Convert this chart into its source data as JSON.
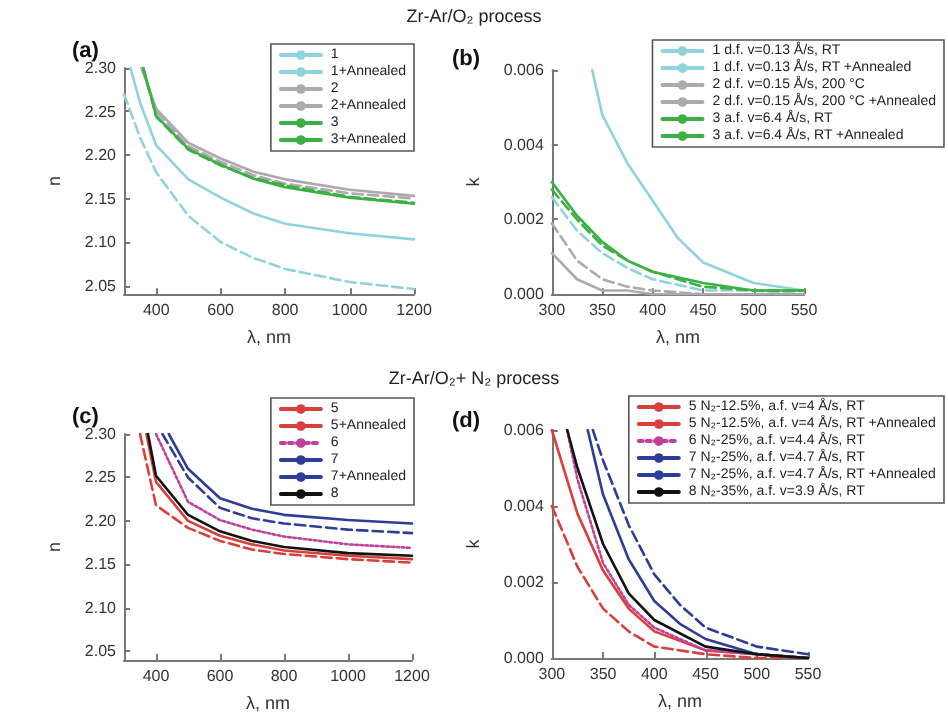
{
  "chart_data": [
    {
      "type": "line",
      "title": "Zr-Ar/O₂ process",
      "annotations": [
        "(a)"
      ],
      "xlabel": "λ, nm",
      "ylabel": "n",
      "xlim": [
        300,
        1200
      ],
      "xticks": [
        400,
        600,
        800,
        1000,
        1200
      ],
      "ylim": [
        2.04,
        2.3
      ],
      "yticks": [
        2.05,
        {
          "value": 2.1,
          "label": "2.10"
        },
        2.15,
        {
          "value": 2.2,
          "label": "2.20"
        },
        2.25,
        {
          "value": 2.3,
          "label": "2.30"
        }
      ],
      "grid": false,
      "legend": "top right",
      "marker": "none",
      "series": [
        {
          "name": "1",
          "color": "#8fd3dc",
          "line_style": "solid",
          "x": [
            320,
            350,
            400,
            500,
            600,
            700,
            800,
            1000,
            1200
          ],
          "values": [
            2.3,
            2.26,
            2.211,
            2.172,
            2.151,
            2.133,
            2.121,
            2.11,
            2.103
          ]
        },
        {
          "name": "1+Annealed",
          "color": "#8fd3dc",
          "line_style": "dashed",
          "x": [
            300,
            350,
            400,
            500,
            600,
            700,
            800,
            1000,
            1200
          ],
          "values": [
            2.27,
            2.22,
            2.18,
            2.13,
            2.1,
            2.082,
            2.069,
            2.054,
            2.046
          ]
        },
        {
          "name": "2",
          "color": "#b0a8b0",
          "line_style": "solid",
          "x": [
            355,
            400,
            500,
            600,
            700,
            800,
            1000,
            1200
          ],
          "values": [
            2.3,
            2.253,
            2.214,
            2.196,
            2.181,
            2.172,
            2.16,
            2.153
          ]
        },
        {
          "name": "2+Annealed",
          "color": "#b0a8b0",
          "line_style": "dashed",
          "x": [
            355,
            400,
            500,
            600,
            700,
            800,
            1000,
            1200
          ],
          "values": [
            2.3,
            2.25,
            2.21,
            2.192,
            2.177,
            2.167,
            2.156,
            2.15
          ]
        },
        {
          "name": "3",
          "color": "#3cb043",
          "line_style": "solid",
          "x": [
            360,
            400,
            500,
            600,
            700,
            800,
            1000,
            1200
          ],
          "values": [
            2.3,
            2.245,
            2.207,
            2.189,
            2.173,
            2.163,
            2.151,
            2.144
          ]
        },
        {
          "name": "3+Annealed",
          "color": "#3cb043",
          "line_style": "dashed",
          "x": [
            360,
            400,
            500,
            600,
            700,
            800,
            1000,
            1200
          ],
          "values": [
            2.3,
            2.244,
            2.206,
            2.188,
            2.174,
            2.165,
            2.152,
            2.145
          ]
        }
      ]
    },
    {
      "type": "line",
      "annotations": [
        "(b)"
      ],
      "xlabel": "λ, nm",
      "ylabel": "k",
      "xlim": [
        300,
        550
      ],
      "xticks": [
        300,
        350,
        400,
        450,
        500,
        550
      ],
      "ylim": [
        0,
        0.006
      ],
      "yticks": [
        {
          "value": 0,
          "label": "0.000"
        },
        0.002,
        0.004,
        0.006
      ],
      "grid": false,
      "legend": "top right",
      "marker": "none",
      "series": [
        {
          "name": "1 d.f. v=0.13 Å/s, RT",
          "color": "#8fd3dc",
          "line_style": "solid",
          "x": [
            340,
            350,
            375,
            400,
            425,
            450,
            500,
            550
          ],
          "values": [
            0.006,
            0.0048,
            0.0035,
            0.0025,
            0.0015,
            0.00085,
            0.0003,
            0.0001
          ]
        },
        {
          "name": "1 d.f. v=0.13 Å/s, RT +Annealed",
          "color": "#8fd3dc",
          "line_style": "dashed",
          "x": [
            300,
            325,
            350,
            375,
            400,
            450,
            500,
            550
          ],
          "values": [
            0.0026,
            0.0017,
            0.0011,
            0.0007,
            0.0004,
            0.0001,
            0.0001,
            0
          ]
        },
        {
          "name": "2 d.f. v=0.15 Å/s, 200 °C",
          "color": "#b0a8b0",
          "line_style": "solid",
          "x": [
            300,
            325,
            350,
            375,
            400,
            450,
            550
          ],
          "values": [
            0.0011,
            0.0004,
            0.0001,
            0.0001,
            0,
            0,
            0
          ]
        },
        {
          "name": "2 d.f. v=0.15 Å/s, 200 °C +Annealed",
          "color": "#b0a8b0",
          "line_style": "dashed",
          "x": [
            300,
            325,
            350,
            375,
            400,
            450,
            550
          ],
          "values": [
            0.0019,
            0.0009,
            0.0004,
            0.0002,
            0.0001,
            0,
            0
          ]
        },
        {
          "name": "3 a.f. v=6.4 Å/s, RT",
          "color": "#3cb043",
          "line_style": "solid",
          "x": [
            300,
            325,
            350,
            375,
            400,
            450,
            500,
            550
          ],
          "values": [
            0.003,
            0.0021,
            0.0014,
            0.0009,
            0.0006,
            0.0003,
            0.0001,
            0.0001
          ]
        },
        {
          "name": "3 a.f. v=6.4 Å/s, RT +Annealed",
          "color": "#3cb043",
          "line_style": "dashed",
          "x": [
            300,
            325,
            350,
            375,
            400,
            450,
            500,
            550
          ],
          "values": [
            0.0028,
            0.002,
            0.0013,
            0.0009,
            0.0006,
            0.0002,
            0.0001,
            0.0001
          ]
        }
      ]
    },
    {
      "type": "line",
      "title": "Zr-Ar/O₂+ N₂ process",
      "annotations": [
        "(c)"
      ],
      "xlabel": "λ, nm",
      "ylabel": "n",
      "xlim": [
        300,
        1200
      ],
      "xticks": [
        400,
        600,
        800,
        1000,
        1200
      ],
      "ylim": [
        2.04,
        2.3
      ],
      "yticks": [
        2.05,
        {
          "value": 2.1,
          "label": "2.10"
        },
        2.15,
        {
          "value": 2.2,
          "label": "2.20"
        },
        2.25,
        {
          "value": 2.3,
          "label": "2.30"
        }
      ],
      "grid": false,
      "legend": "top right",
      "marker": "none",
      "series": [
        {
          "name": "5",
          "color": "#d9403a",
          "line_style": "solid",
          "x": [
            370,
            400,
            500,
            600,
            700,
            800,
            1000,
            1200
          ],
          "values": [
            2.3,
            2.245,
            2.2,
            2.183,
            2.173,
            2.166,
            2.16,
            2.156
          ]
        },
        {
          "name": "5+Annealed",
          "color": "#d9403a",
          "line_style": "dashed",
          "x": [
            350,
            400,
            500,
            600,
            700,
            800,
            1000,
            1200
          ],
          "values": [
            2.3,
            2.218,
            2.192,
            2.177,
            2.167,
            2.162,
            2.156,
            2.152
          ]
        },
        {
          "name": "6",
          "color": "#c0409a",
          "line_style": "dotted",
          "x": [
            400,
            500,
            600,
            700,
            800,
            1000,
            1200
          ],
          "values": [
            2.3,
            2.222,
            2.201,
            2.19,
            2.182,
            2.173,
            2.169
          ]
        },
        {
          "name": "7",
          "color": "#2e3d99",
          "line_style": "solid",
          "x": [
            440,
            500,
            600,
            700,
            800,
            1000,
            1200
          ],
          "values": [
            2.3,
            2.26,
            2.226,
            2.214,
            2.207,
            2.201,
            2.197
          ]
        },
        {
          "name": "7+Annealed",
          "color": "#2e3d99",
          "line_style": "dashed",
          "x": [
            420,
            500,
            600,
            700,
            800,
            1000,
            1200
          ],
          "values": [
            2.3,
            2.25,
            2.215,
            2.203,
            2.197,
            2.19,
            2.186
          ]
        },
        {
          "name": "8",
          "color": "#111111",
          "line_style": "solid",
          "x": [
            375,
            400,
            500,
            600,
            700,
            800,
            1000,
            1200
          ],
          "values": [
            2.3,
            2.252,
            2.207,
            2.188,
            2.177,
            2.17,
            2.163,
            2.16
          ]
        }
      ]
    },
    {
      "type": "line",
      "annotations": [
        "(d)"
      ],
      "xlabel": "λ, nm",
      "ylabel": "k",
      "xlim": [
        300,
        550
      ],
      "xticks": [
        300,
        350,
        400,
        450,
        500,
        550
      ],
      "ylim": [
        0,
        0.006
      ],
      "yticks": [
        {
          "value": 0,
          "label": "0.000"
        },
        0.002,
        0.004,
        0.006
      ],
      "grid": false,
      "legend": "top right",
      "marker": "none",
      "series": [
        {
          "name": "5 N₂-12.5%, a.f. v=4 Å/s, RT",
          "color": "#d9403a",
          "line_style": "solid",
          "x": [
            300,
            325,
            350,
            375,
            400,
            450,
            500,
            550
          ],
          "values": [
            0.006,
            0.0038,
            0.0023,
            0.0013,
            0.0007,
            0.0002,
            0.0001,
            0
          ]
        },
        {
          "name": "5 N₂-12.5%, a.f. v=4 Å/s, RT +Annealed",
          "color": "#d9403a",
          "line_style": "dashed",
          "x": [
            300,
            325,
            350,
            375,
            400,
            450,
            500,
            550
          ],
          "values": [
            0.004,
            0.0024,
            0.0013,
            0.0007,
            0.0003,
            0.0001,
            0,
            0
          ]
        },
        {
          "name": "6 N₂-25%, a.f. v=4.4 Å/s, RT",
          "color": "#c0409a",
          "line_style": "dotted",
          "x": [
            315,
            325,
            350,
            375,
            400,
            450,
            500,
            550
          ],
          "values": [
            0.006,
            0.0047,
            0.0025,
            0.0014,
            0.0008,
            0.0002,
            0.0001,
            0
          ]
        },
        {
          "name": "7 N₂-25%, a.f. v=4.7 Å/s, RT",
          "color": "#2e3d99",
          "line_style": "solid",
          "x": [
            335,
            350,
            375,
            400,
            425,
            450,
            500,
            550
          ],
          "values": [
            0.006,
            0.0043,
            0.0026,
            0.0015,
            0.0009,
            0.0005,
            0.0001,
            0
          ]
        },
        {
          "name": "7 N₂-25%, a.f. v=4.7 Å/s, RT +Annealed",
          "color": "#2e3d99",
          "line_style": "dashed",
          "x": [
            340,
            350,
            375,
            400,
            425,
            450,
            500,
            550
          ],
          "values": [
            0.006,
            0.0052,
            0.0035,
            0.0022,
            0.0014,
            0.0008,
            0.0003,
            0.0001
          ]
        },
        {
          "name": "8 N₂-35%, a.f. v=3.9 Å/s, RT",
          "color": "#111111",
          "line_style": "solid",
          "x": [
            315,
            325,
            350,
            375,
            400,
            450,
            500,
            550
          ],
          "values": [
            0.006,
            0.005,
            0.003,
            0.0017,
            0.001,
            0.0003,
            0.0001,
            0
          ]
        }
      ]
    }
  ]
}
